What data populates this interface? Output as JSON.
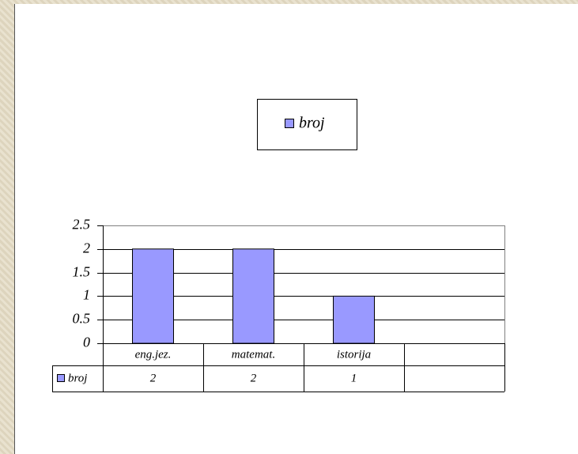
{
  "chart_data": {
    "type": "bar",
    "categories": [
      "eng.jez.",
      "matemat.",
      "istorija",
      null
    ],
    "series": [
      {
        "name": "broj",
        "color": "#9999ff",
        "values": [
          2,
          2,
          1,
          null
        ]
      }
    ],
    "ylim": [
      0,
      2.5
    ],
    "yticks": [
      0,
      0.5,
      1,
      1.5,
      2,
      2.5
    ],
    "grid": true,
    "legend": "top"
  }
}
